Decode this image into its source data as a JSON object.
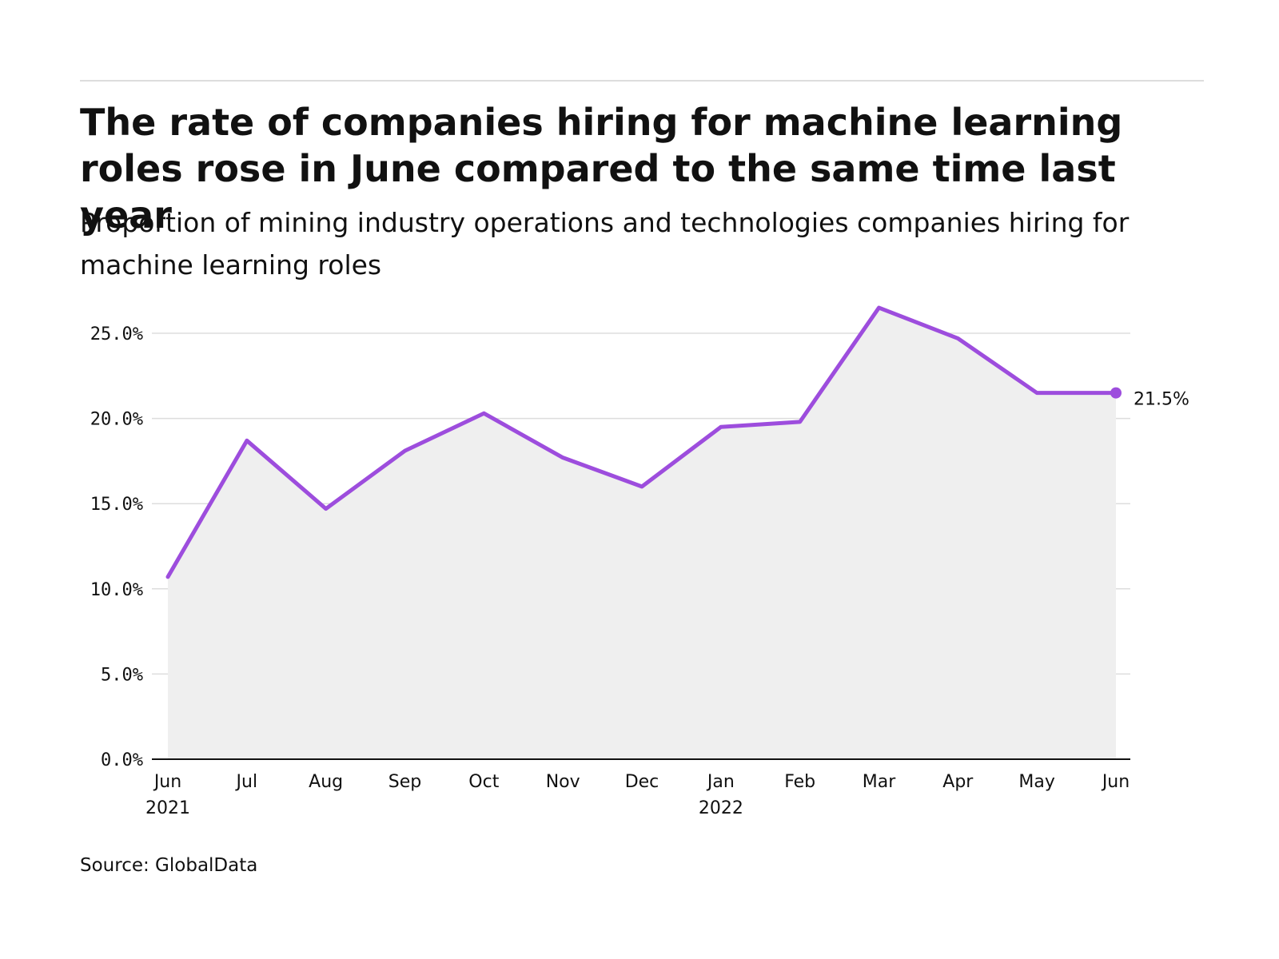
{
  "header": {
    "title": "The rate of companies hiring for machine learning roles rose in June compared to the same time last year",
    "subtitle": "Proportion of mining industry operations and technologies companies hiring for machine learning roles"
  },
  "footer": {
    "source": "Source: GlobalData"
  },
  "colors": {
    "line": "#9d4ddd",
    "area": "#efefef",
    "grid": "#dddddd",
    "axis": "#111111",
    "text": "#111111"
  },
  "chart_data": {
    "type": "area",
    "categories": [
      "Jun",
      "Jul",
      "Aug",
      "Sep",
      "Oct",
      "Nov",
      "Dec",
      "Jan",
      "Feb",
      "Mar",
      "Apr",
      "May",
      "Jun"
    ],
    "category_sublabels": [
      "2021",
      "",
      "",
      "",
      "",
      "",
      "",
      "2022",
      "",
      "",
      "",
      "",
      ""
    ],
    "series": [
      {
        "values": [
          10.7,
          18.7,
          14.7,
          18.1,
          20.3,
          17.7,
          16.0,
          19.5,
          19.8,
          26.5,
          24.7,
          21.5,
          21.5
        ]
      }
    ],
    "ylim": [
      0,
      27
    ],
    "yticks": [
      0,
      5,
      10,
      15,
      20,
      25
    ],
    "ytick_labels": [
      "0.0%",
      "5.0%",
      "10.0%",
      "15.0%",
      "20.0%",
      "25.0%"
    ],
    "end_label": "21.5%",
    "grid": true,
    "legend": "none"
  }
}
